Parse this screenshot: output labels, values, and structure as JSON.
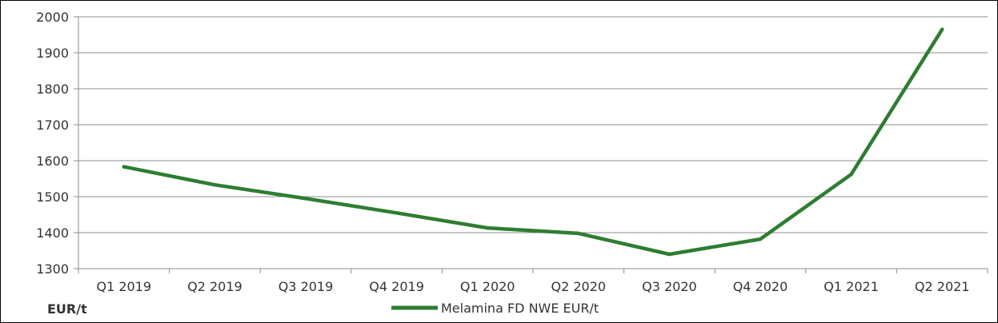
{
  "chart_data": {
    "type": "line",
    "categories": [
      "Q1 2019",
      "Q2 2019",
      "Q3 2019",
      "Q4 2019",
      "Q1 2020",
      "Q2 2020",
      "Q3 2020",
      "Q4 2020",
      "Q1 2021",
      "Q2 2021"
    ],
    "series": [
      {
        "name": "Melamina FD NWE EUR/t",
        "values": [
          1583,
          1533,
          1495,
          1455,
          1413,
          1398,
          1340,
          1382,
          1562,
          1965
        ],
        "color": "#2e7d32"
      }
    ],
    "ylabel": "EUR/t",
    "ylim": [
      1300,
      2000
    ],
    "yticks": [
      1300,
      1400,
      1500,
      1600,
      1700,
      1800,
      1900,
      2000
    ],
    "grid": true,
    "legend_position": "bottom-center"
  }
}
